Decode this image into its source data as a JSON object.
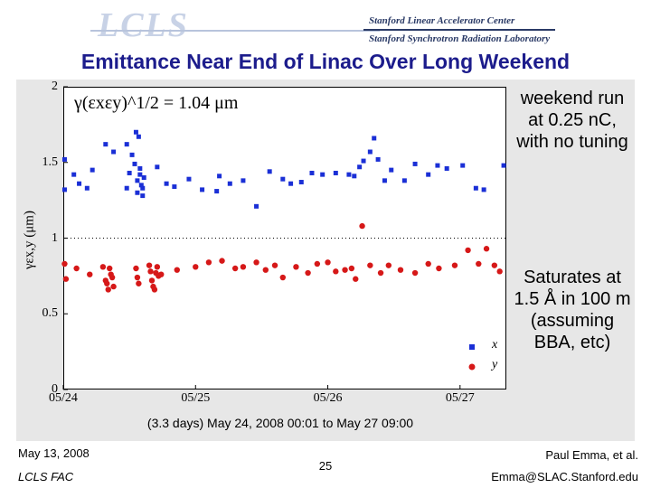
{
  "header": {
    "logo_text": "LCLS",
    "institution_line1": "Stanford Linear Accelerator Center",
    "institution_line2": "Stanford Synchrotron Radiation Laboratory"
  },
  "slide": {
    "title": "Emittance Near End of Linac Over Long Weekend",
    "note_weekend": "weekend run at 0.25 nC, with no tuning",
    "note_saturates": "Saturates at 1.5 Å in 100 m (assuming BBA, etc)",
    "x_range_label": "(3.3 days) May 24, 2008 00:01 to May 27 09:00",
    "footer_date": "May 13, 2008",
    "footer_org": "LCLS FAC",
    "page_number": "25",
    "footer_author": "Paul Emma, et al.",
    "footer_email": "Emma@SLAC.Stanford.edu"
  },
  "chart_data": {
    "type": "scatter",
    "annotation": "γ(εxεy)^1/2 = 1.04 μm",
    "ylabel": "γεx,y (μm)",
    "xlabel": "",
    "x_unit": "days since 05/24 00:00",
    "xlim": [
      0,
      3.35
    ],
    "ylim": [
      0,
      2
    ],
    "xticks": [
      0,
      1,
      2,
      3
    ],
    "xtick_labels": [
      "05/24",
      "05/25",
      "05/26",
      "05/27"
    ],
    "yticks": [
      0,
      0.5,
      1,
      1.5,
      2
    ],
    "ytick_labels": [
      "0",
      "0.5",
      "1",
      "1.5",
      "2"
    ],
    "reference_line_y": 1.0,
    "legend_placement": "bottom-right",
    "colors": {
      "x": "#1a2fd6",
      "y": "#d61818"
    },
    "series": [
      {
        "name": "x",
        "marker": "square",
        "points": [
          [
            0.01,
            1.52
          ],
          [
            0.01,
            1.32
          ],
          [
            0.08,
            1.42
          ],
          [
            0.12,
            1.36
          ],
          [
            0.18,
            1.33
          ],
          [
            0.22,
            1.45
          ],
          [
            0.32,
            1.62
          ],
          [
            0.38,
            1.57
          ],
          [
            0.48,
            1.62
          ],
          [
            0.48,
            1.33
          ],
          [
            0.5,
            1.43
          ],
          [
            0.52,
            1.55
          ],
          [
            0.54,
            1.49
          ],
          [
            0.55,
            1.7
          ],
          [
            0.56,
            1.38
          ],
          [
            0.56,
            1.3
          ],
          [
            0.57,
            1.67
          ],
          [
            0.58,
            1.46
          ],
          [
            0.58,
            1.42
          ],
          [
            0.59,
            1.35
          ],
          [
            0.6,
            1.33
          ],
          [
            0.6,
            1.28
          ],
          [
            0.61,
            1.4
          ],
          [
            0.71,
            1.47
          ],
          [
            0.78,
            1.36
          ],
          [
            0.84,
            1.34
          ],
          [
            0.95,
            1.39
          ],
          [
            1.05,
            1.32
          ],
          [
            1.16,
            1.31
          ],
          [
            1.18,
            1.41
          ],
          [
            1.26,
            1.36
          ],
          [
            1.36,
            1.38
          ],
          [
            1.46,
            1.21
          ],
          [
            1.56,
            1.44
          ],
          [
            1.66,
            1.39
          ],
          [
            1.72,
            1.36
          ],
          [
            1.8,
            1.37
          ],
          [
            1.88,
            1.43
          ],
          [
            1.96,
            1.42
          ],
          [
            2.06,
            1.43
          ],
          [
            2.16,
            1.42
          ],
          [
            2.2,
            1.41
          ],
          [
            2.24,
            1.47
          ],
          [
            2.27,
            1.51
          ],
          [
            2.32,
            1.57
          ],
          [
            2.35,
            1.66
          ],
          [
            2.38,
            1.52
          ],
          [
            2.43,
            1.38
          ],
          [
            2.48,
            1.45
          ],
          [
            2.58,
            1.38
          ],
          [
            2.66,
            1.49
          ],
          [
            2.76,
            1.42
          ],
          [
            2.83,
            1.48
          ],
          [
            2.9,
            1.46
          ],
          [
            3.02,
            1.48
          ],
          [
            3.12,
            1.33
          ],
          [
            3.18,
            1.32
          ],
          [
            3.33,
            1.48
          ]
        ]
      },
      {
        "name": "y",
        "marker": "circle",
        "points": [
          [
            0.01,
            0.83
          ],
          [
            0.02,
            0.73
          ],
          [
            0.1,
            0.8
          ],
          [
            0.2,
            0.76
          ],
          [
            0.3,
            0.81
          ],
          [
            0.32,
            0.72
          ],
          [
            0.33,
            0.7
          ],
          [
            0.34,
            0.66
          ],
          [
            0.35,
            0.8
          ],
          [
            0.36,
            0.76
          ],
          [
            0.37,
            0.74
          ],
          [
            0.38,
            0.68
          ],
          [
            0.55,
            0.8
          ],
          [
            0.56,
            0.74
          ],
          [
            0.57,
            0.7
          ],
          [
            0.65,
            0.82
          ],
          [
            0.66,
            0.78
          ],
          [
            0.67,
            0.72
          ],
          [
            0.68,
            0.68
          ],
          [
            0.69,
            0.66
          ],
          [
            0.7,
            0.77
          ],
          [
            0.71,
            0.81
          ],
          [
            0.72,
            0.75
          ],
          [
            0.74,
            0.76
          ],
          [
            0.86,
            0.79
          ],
          [
            1.0,
            0.81
          ],
          [
            1.1,
            0.84
          ],
          [
            1.2,
            0.85
          ],
          [
            1.3,
            0.8
          ],
          [
            1.36,
            0.81
          ],
          [
            1.46,
            0.84
          ],
          [
            1.53,
            0.79
          ],
          [
            1.6,
            0.82
          ],
          [
            1.66,
            0.74
          ],
          [
            1.76,
            0.81
          ],
          [
            1.85,
            0.77
          ],
          [
            1.92,
            0.83
          ],
          [
            2.0,
            0.84
          ],
          [
            2.06,
            0.78
          ],
          [
            2.13,
            0.79
          ],
          [
            2.18,
            0.8
          ],
          [
            2.21,
            0.73
          ],
          [
            2.26,
            1.08
          ],
          [
            2.32,
            0.82
          ],
          [
            2.4,
            0.77
          ],
          [
            2.46,
            0.82
          ],
          [
            2.55,
            0.79
          ],
          [
            2.66,
            0.77
          ],
          [
            2.76,
            0.83
          ],
          [
            2.84,
            0.8
          ],
          [
            2.96,
            0.82
          ],
          [
            3.06,
            0.92
          ],
          [
            3.14,
            0.83
          ],
          [
            3.2,
            0.93
          ],
          [
            3.26,
            0.82
          ],
          [
            3.3,
            0.78
          ]
        ]
      }
    ]
  }
}
